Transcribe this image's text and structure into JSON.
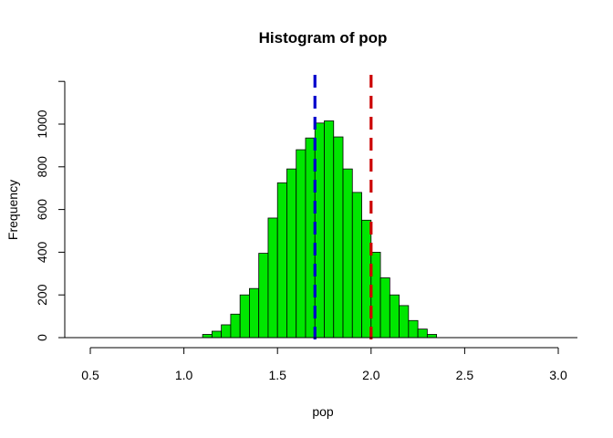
{
  "chart_data": {
    "type": "bar",
    "title": "Histogram of pop",
    "xlabel": "pop",
    "ylabel": "Frequency",
    "xlim": [
      0.5,
      3.0
    ],
    "ylim": [
      0,
      1200
    ],
    "x_ticks": [
      0.5,
      1.0,
      1.5,
      2.0,
      2.5,
      3.0
    ],
    "x_tick_labels": [
      "0.5",
      "1.0",
      "1.5",
      "2.0",
      "2.5",
      "3.0"
    ],
    "y_ticks": [
      0,
      200,
      400,
      600,
      800,
      1000
    ],
    "y_tick_labels": [
      "0",
      "200",
      "400",
      "600",
      "800",
      "1000"
    ],
    "bin_width": 0.05,
    "bin_starts": [
      1.1,
      1.15,
      1.2,
      1.25,
      1.3,
      1.35,
      1.4,
      1.45,
      1.5,
      1.55,
      1.6,
      1.65,
      1.7,
      1.75,
      1.8,
      1.85,
      1.9,
      1.95,
      2.0,
      2.05,
      2.1,
      2.15,
      2.2,
      2.25,
      2.3
    ],
    "values": [
      15,
      30,
      60,
      110,
      200,
      230,
      395,
      560,
      725,
      790,
      880,
      935,
      1005,
      1015,
      940,
      790,
      680,
      550,
      400,
      280,
      200,
      150,
      80,
      40,
      15
    ],
    "bar_color": "#00e600",
    "bar_border_color": "#000000",
    "vlines": [
      {
        "x": 1.7,
        "color": "#0000cc",
        "style": "dashed"
      },
      {
        "x": 2.0,
        "color": "#cc0000",
        "style": "dashed"
      }
    ],
    "grid": false,
    "legend": "none"
  }
}
